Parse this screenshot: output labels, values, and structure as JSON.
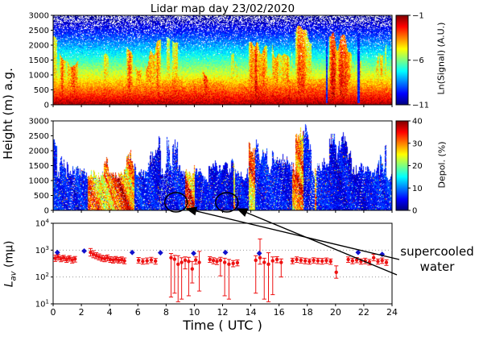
{
  "figure": {
    "title": "Lidar map day 23/02/2020",
    "height_axis_label": "Height (m) a.g.",
    "lav_prefix": "L",
    "lav_sub": "av",
    "lav_suffix": " (mμ)",
    "xlabel": "Time ( UTC )",
    "annotation": "supercooled water"
  },
  "chart_data": [
    {
      "type": "heatmap",
      "name": "lidar-signal-map",
      "x_range": [
        0,
        24
      ],
      "y_range": [
        0,
        3000
      ],
      "y_ticks": [
        0,
        500,
        1000,
        1500,
        2000,
        2500,
        3000
      ],
      "x_ticks": [
        0,
        2,
        4,
        6,
        8,
        10,
        12,
        14,
        16,
        18,
        20,
        22,
        24
      ],
      "colorbar": {
        "label": "Ln(Signal) (A.U.)",
        "range": [
          -11,
          -1
        ],
        "ticks": [
          -1,
          -6,
          -11
        ],
        "colormap": "jet"
      },
      "summary": "Strong returns (red/yellow) in the boundary layer below ~1000 m all day, intermittent bright cloud columns up to 3000 m, weak signal (dark blue) aloft with white no-data gaps."
    },
    {
      "type": "heatmap",
      "name": "depolarization-map",
      "x_range": [
        0,
        24
      ],
      "y_range": [
        0,
        3000
      ],
      "y_ticks": [
        0,
        500,
        1000,
        1500,
        2000,
        2500,
        3000
      ],
      "x_ticks": [
        0,
        2,
        4,
        6,
        8,
        10,
        12,
        14,
        16,
        18,
        20,
        22,
        24
      ],
      "colorbar": {
        "label": "Depol. (%)",
        "range": [
          0,
          40
        ],
        "ticks": [
          0,
          10,
          20,
          30,
          40
        ],
        "colormap": "jet"
      },
      "highlight_ellipses": [
        {
          "time": 8.7,
          "height_m": 150
        },
        {
          "time": 12.3,
          "height_m": 150
        }
      ],
      "summary": "Mostly low depolarization (blue) liquid layers with interspersed high-depolarization (orange/red) ice columns; circled low-level low-depolarization regions mark supercooled water."
    },
    {
      "type": "scatter",
      "name": "lav-timeseries",
      "xlabel": "Time ( UTC )",
      "ylabel": "Lav (mμ)",
      "y_scale": "log",
      "ylim": [
        10,
        10000
      ],
      "y_tick_exponents": [
        4,
        3,
        2,
        1
      ],
      "x_range": [
        0,
        24
      ],
      "x_ticks": [
        0,
        2,
        4,
        6,
        8,
        10,
        12,
        14,
        16,
        18,
        20,
        22,
        24
      ],
      "grid": "dotted horizontal at decades",
      "series": [
        {
          "name": "Lav with error bars",
          "marker": "circle",
          "color": "#ee1111",
          "error_bars": true,
          "points": [
            [
              0.15,
              500,
              380,
              650
            ],
            [
              0.35,
              560,
              430,
              700
            ],
            [
              0.55,
              480,
              370,
              600
            ],
            [
              0.75,
              520,
              400,
              640
            ],
            [
              0.95,
              450,
              350,
              560
            ],
            [
              1.15,
              500,
              390,
              620
            ],
            [
              1.35,
              430,
              330,
              540
            ],
            [
              1.55,
              470,
              360,
              580
            ],
            [
              2.65,
              820,
              600,
              1150
            ],
            [
              2.85,
              700,
              520,
              950
            ],
            [
              3.05,
              620,
              480,
              800
            ],
            [
              3.25,
              560,
              430,
              720
            ],
            [
              3.45,
              500,
              390,
              640
            ],
            [
              3.65,
              480,
              370,
              610
            ],
            [
              3.85,
              520,
              400,
              660
            ],
            [
              4.05,
              450,
              350,
              570
            ],
            [
              4.25,
              430,
              330,
              550
            ],
            [
              4.45,
              460,
              360,
              580
            ],
            [
              4.65,
              420,
              330,
              530
            ],
            [
              4.85,
              440,
              340,
              560
            ],
            [
              5.05,
              400,
              310,
              510
            ],
            [
              6.05,
              420,
              330,
              530
            ],
            [
              6.35,
              380,
              300,
              480
            ],
            [
              6.65,
              400,
              310,
              510
            ],
            [
              6.95,
              430,
              340,
              540
            ],
            [
              7.25,
              390,
              300,
              490
            ],
            [
              8.35,
              520,
              18,
              750
            ],
            [
              8.6,
              460,
              25,
              640
            ],
            [
              8.85,
              300,
              12,
              620
            ],
            [
              9.1,
              350,
              15,
              520
            ],
            [
              9.35,
              420,
              200,
              560
            ],
            [
              9.6,
              380,
              20,
              540
            ],
            [
              9.85,
              200,
              60,
              380
            ],
            [
              10.1,
              430,
              300,
              560
            ],
            [
              10.35,
              350,
              30,
              900
            ],
            [
              11.1,
              450,
              350,
              570
            ],
            [
              11.35,
              410,
              310,
              520
            ],
            [
              11.6,
              380,
              290,
              480
            ],
            [
              11.85,
              420,
              110,
              540
            ],
            [
              12.15,
              350,
              20,
              500
            ],
            [
              12.45,
              300,
              15,
              450
            ],
            [
              12.75,
              320,
              240,
              410
            ],
            [
              13.05,
              340,
              260,
              430
            ],
            [
              14.35,
              420,
              25,
              620
            ],
            [
              14.65,
              520,
              300,
              2600
            ],
            [
              14.95,
              350,
              15,
              500
            ],
            [
              15.25,
              300,
              12,
              800
            ],
            [
              15.55,
              400,
              22,
              560
            ],
            [
              15.85,
              450,
              340,
              570
            ],
            [
              16.15,
              350,
              100,
              470
            ],
            [
              16.95,
              400,
              310,
              500
            ],
            [
              17.25,
              450,
              350,
              560
            ],
            [
              17.55,
              420,
              330,
              520
            ],
            [
              17.85,
              400,
              310,
              500
            ],
            [
              18.15,
              380,
              300,
              470
            ],
            [
              18.45,
              420,
              330,
              520
            ],
            [
              18.75,
              400,
              310,
              500
            ],
            [
              19.05,
              390,
              300,
              490
            ],
            [
              19.35,
              410,
              320,
              510
            ],
            [
              19.65,
              380,
              295,
              470
            ],
            [
              20.05,
              150,
              90,
              260
            ],
            [
              20.9,
              450,
              350,
              560
            ],
            [
              21.2,
              400,
              310,
              500
            ],
            [
              21.5,
              430,
              340,
              530
            ],
            [
              21.8,
              380,
              300,
              470
            ],
            [
              22.1,
              400,
              310,
              500
            ],
            [
              22.4,
              360,
              280,
              450
            ],
            [
              22.7,
              520,
              400,
              700
            ],
            [
              23.0,
              380,
              300,
              470
            ],
            [
              23.3,
              410,
              320,
              510
            ],
            [
              23.6,
              350,
              270,
              440
            ]
          ]
        },
        {
          "name": "reference diamonds",
          "marker": "diamond",
          "color": "#1111cc",
          "error_bars": false,
          "points": [
            [
              0.3,
              820
            ],
            [
              2.2,
              930
            ],
            [
              5.6,
              820
            ],
            [
              7.6,
              800
            ],
            [
              9.95,
              760
            ],
            [
              12.2,
              820
            ],
            [
              14.6,
              760
            ],
            [
              21.6,
              820
            ],
            [
              23.3,
              700
            ]
          ]
        }
      ]
    }
  ]
}
